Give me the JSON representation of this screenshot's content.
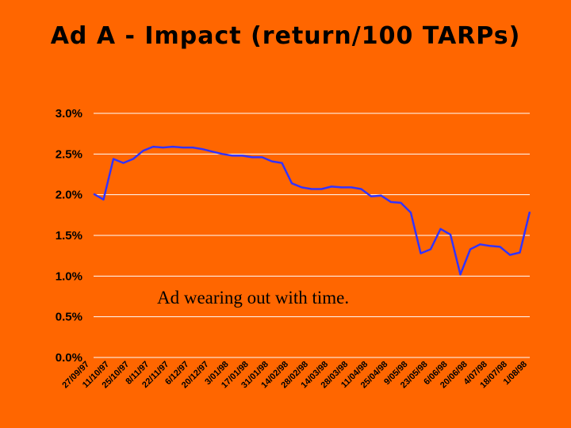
{
  "chart_data": {
    "type": "line",
    "title": "Ad A - Impact (return/100 TARPs)",
    "xlabel": "",
    "ylabel": "",
    "ylim": [
      0,
      3.0
    ],
    "yticks": [
      "0.0%",
      "0.5%",
      "1.0%",
      "1.5%",
      "2.0%",
      "2.5%",
      "3.0%"
    ],
    "grid": true,
    "x_tick_labels": [
      "27/09/97",
      "11/10/97",
      "25/10/97",
      "8/11/97",
      "22/11/97",
      "6/12/97",
      "20/12/97",
      "3/01/98",
      "17/01/98",
      "31/01/98",
      "14/02/98",
      "28/02/98",
      "14/03/98",
      "28/03/98",
      "11/04/98",
      "25/04/98",
      "9/05/98",
      "23/05/98",
      "6/06/98",
      "20/06/98",
      "4/07/98",
      "18/07/98",
      "1/08/98"
    ],
    "series": [
      {
        "color": "#3333FF",
        "values": [
          2.01,
          1.94,
          2.44,
          2.39,
          2.44,
          2.54,
          2.59,
          2.58,
          2.59,
          2.58,
          2.58,
          2.56,
          2.53,
          2.5,
          2.48,
          2.48,
          2.46,
          2.46,
          2.41,
          2.39,
          2.14,
          2.09,
          2.07,
          2.07,
          2.1,
          2.09,
          2.09,
          2.07,
          1.98,
          1.99,
          1.91,
          1.9,
          1.78,
          1.28,
          1.33,
          1.58,
          1.51,
          1.02,
          1.33,
          1.39,
          1.37,
          1.36,
          1.26,
          1.29,
          1.79
        ]
      }
    ],
    "annotation": "Ad wearing out with time."
  },
  "colors": {
    "background": "#FF6600",
    "line": "#3333FF",
    "grid": "#FFFFFF"
  }
}
